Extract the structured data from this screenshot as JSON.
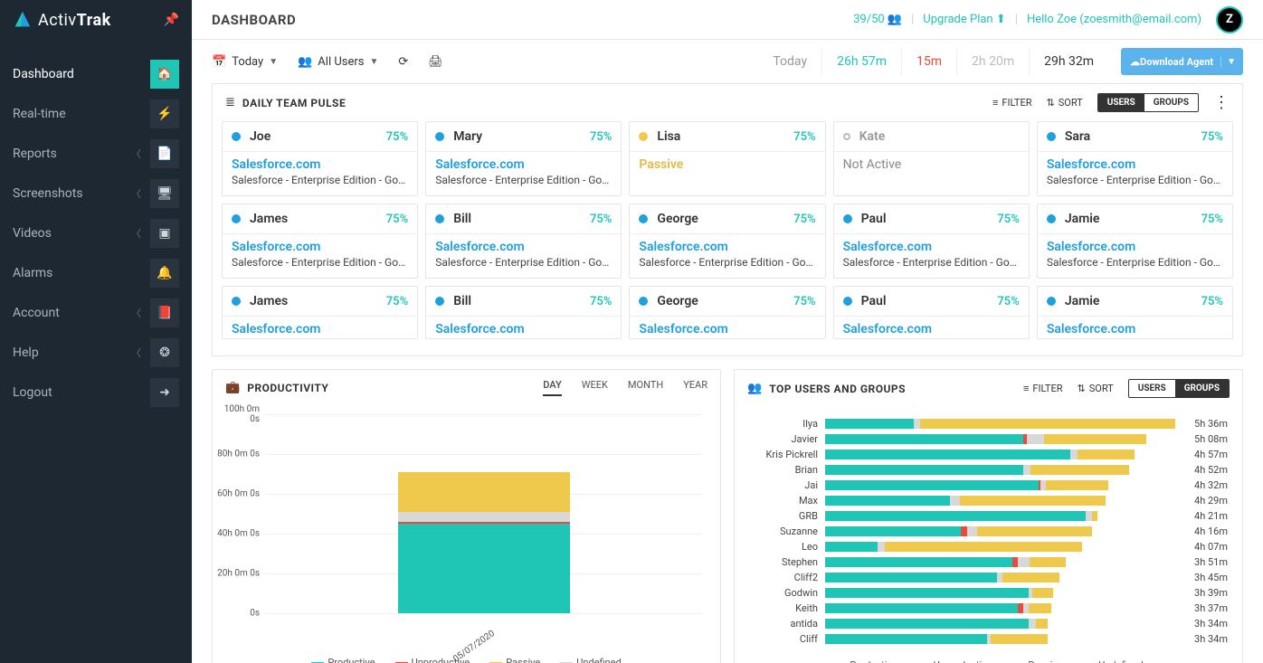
{
  "colors": {
    "teal": "#1fc6b5",
    "blue": "#1fa0de",
    "yellow": "#efc94c",
    "red": "#e74c3c",
    "gray": "#d8d8d8",
    "headerBlue": "#5cb3ec",
    "dotProductive": "#1fa0de",
    "dotPassive": "#efc94c",
    "dotInactive": "#bbbbbb"
  },
  "brand": {
    "text1": "Activ",
    "text2": "Trak"
  },
  "nav": [
    {
      "label": "Dashboard",
      "icon": "🏠",
      "chev": false,
      "active": true
    },
    {
      "label": "Real-time",
      "icon": "⚡",
      "chev": false
    },
    {
      "label": "Reports",
      "icon": "📄",
      "chev": true
    },
    {
      "label": "Screenshots",
      "icon": "🖥",
      "chev": true
    },
    {
      "label": "Videos",
      "icon": "▣",
      "chev": true
    },
    {
      "label": "Alarms",
      "icon": "🔔",
      "chev": false
    },
    {
      "label": "Account",
      "icon": "📕",
      "chev": true
    },
    {
      "label": "Help",
      "icon": "❂",
      "chev": true
    },
    {
      "label": "Logout",
      "icon": "➜",
      "chev": false
    }
  ],
  "page": {
    "title": "DASHBOARD"
  },
  "topbar": {
    "quota": "39/50",
    "upgrade": "Upgrade Plan",
    "greeting": "Hello Zoe",
    "email": "(zoesmith@email.com)",
    "avatar": "Z"
  },
  "toolbar": {
    "date": "Today",
    "users": "All Users",
    "times": {
      "label": "Today",
      "productive": "26h 57m",
      "unproductive": "15m",
      "passive": "2h 20m",
      "total": "29h 32m"
    },
    "download": "Download Agent"
  },
  "pulse": {
    "title": "DAILY TEAM PULSE",
    "filter": "FILTER",
    "sort": "SORT",
    "toggle": {
      "a": "USERS",
      "b": "GROUPS",
      "active": "a"
    },
    "rows": [
      [
        {
          "name": "Joe",
          "pct": "75%",
          "app": "Salesforce.com",
          "sub": "Salesforce - Enterprise Edition - Googl…",
          "status": "productive"
        },
        {
          "name": "Mary",
          "pct": "75%",
          "app": "Salesforce.com",
          "sub": "Salesforce - Enterprise Edition - Googl…",
          "status": "productive"
        },
        {
          "name": "Lisa",
          "pct": "75%",
          "app": "Passive",
          "sub": "",
          "status": "passive"
        },
        {
          "name": "Kate",
          "pct": "",
          "app": "Not Active",
          "sub": "",
          "status": "inactive"
        },
        {
          "name": "Sara",
          "pct": "75%",
          "app": "Salesforce.com",
          "sub": "Salesforce - Enterprise Edition - Googl…",
          "status": "productive"
        }
      ],
      [
        {
          "name": "James",
          "pct": "75%",
          "app": "Salesforce.com",
          "sub": "Salesforce - Enterprise Edition - Google C…",
          "status": "productive"
        },
        {
          "name": "Bill",
          "pct": "75%",
          "app": "Salesforce.com",
          "sub": "Salesforce - Enterprise Edition - Googl…",
          "status": "productive"
        },
        {
          "name": "George",
          "pct": "75%",
          "app": "Salesforce.com",
          "sub": "Salesforce - Enterprise Edition - Googl…",
          "status": "productive"
        },
        {
          "name": "Paul",
          "pct": "75%",
          "app": "Salesforce.com",
          "sub": "Salesforce - Enterprise Edition - Googl…",
          "status": "productive"
        },
        {
          "name": "Jamie",
          "pct": "75%",
          "app": "Salesforce.com",
          "sub": "Salesforce - Enterprise Edition - Googl…",
          "status": "productive"
        }
      ],
      [
        {
          "name": "James",
          "pct": "75%",
          "app": "Salesforce.com",
          "sub": "",
          "status": "productive"
        },
        {
          "name": "Bill",
          "pct": "75%",
          "app": "Salesforce.com",
          "sub": "",
          "status": "productive"
        },
        {
          "name": "George",
          "pct": "75%",
          "app": "Salesforce.com",
          "sub": "",
          "status": "productive"
        },
        {
          "name": "Paul",
          "pct": "75%",
          "app": "Salesforce.com",
          "sub": "",
          "status": "productive"
        },
        {
          "name": "Jamie",
          "pct": "75%",
          "app": "Salesforce.com",
          "sub": "",
          "status": "productive"
        }
      ]
    ]
  },
  "productivity": {
    "title": "PRODUCTIVITY",
    "tabs": [
      "DAY",
      "WEEK",
      "MONTH",
      "YEAR"
    ],
    "activeTab": 0,
    "ymax": 100,
    "yticks": [
      "100h 0m 0s",
      "80h 0m 0s",
      "60h 0m 0s",
      "40h 0m 0s",
      "20h 0m 0s",
      "0s"
    ],
    "xlabel": "05/07/2020",
    "segments": [
      {
        "key": "productive",
        "value": 45,
        "color": "#1fc6b5"
      },
      {
        "key": "unproductive",
        "value": 1,
        "color": "#e74c3c"
      },
      {
        "key": "undefined",
        "value": 5,
        "color": "#d8d8d8"
      },
      {
        "key": "passive",
        "value": 20,
        "color": "#efc94c"
      }
    ],
    "legend": [
      {
        "label": "Productive",
        "color": "#1fc6b5"
      },
      {
        "label": "Unproductive",
        "color": "#e74c3c"
      },
      {
        "label": "Passive",
        "color": "#efc94c"
      },
      {
        "label": "Undefined",
        "color": "#d8d8d8"
      }
    ]
  },
  "topusers": {
    "title": "TOP USERS AND GROUPS",
    "filter": "FILTER",
    "sort": "SORT",
    "toggle": {
      "a": "USERS",
      "b": "GROUPS",
      "active": "b"
    },
    "maxMinutes": 336,
    "rows": [
      {
        "name": "Ilya",
        "time": "5h 36m",
        "p": 85,
        "u": 0,
        "ps": 245,
        "ud": 6
      },
      {
        "name": "Javier",
        "time": "5h 08m",
        "p": 190,
        "u": 4,
        "ps": 98,
        "ud": 16
      },
      {
        "name": "Kris Pickrell",
        "time": "4h 57m",
        "p": 235,
        "u": 0,
        "ps": 55,
        "ud": 7
      },
      {
        "name": "Brian",
        "time": "4h 52m",
        "p": 190,
        "u": 0,
        "ps": 95,
        "ud": 7
      },
      {
        "name": "Jai",
        "time": "4h 32m",
        "p": 205,
        "u": 2,
        "ps": 60,
        "ud": 5
      },
      {
        "name": "Max",
        "time": "4h 29m",
        "p": 120,
        "u": 0,
        "ps": 140,
        "ud": 9
      },
      {
        "name": "GRB",
        "time": "4h 21m",
        "p": 250,
        "u": 0,
        "ps": 5,
        "ud": 6
      },
      {
        "name": "Suzanne",
        "time": "4h 16m",
        "p": 130,
        "u": 6,
        "ps": 110,
        "ud": 10
      },
      {
        "name": "Leo",
        "time": "4h 07m",
        "p": 50,
        "u": 0,
        "ps": 190,
        "ud": 7
      },
      {
        "name": "Stephen",
        "time": "3h 51m",
        "p": 180,
        "u": 5,
        "ps": 35,
        "ud": 11
      },
      {
        "name": "Cliff2",
        "time": "3h 45m",
        "p": 165,
        "u": 0,
        "ps": 55,
        "ud": 5
      },
      {
        "name": "Godwin",
        "time": "3h 39m",
        "p": 195,
        "u": 0,
        "ps": 20,
        "ud": 4
      },
      {
        "name": "Keith",
        "time": "3h 37m",
        "p": 185,
        "u": 5,
        "ps": 22,
        "ud": 5
      },
      {
        "name": "antida",
        "time": "3h 34m",
        "p": 195,
        "u": 0,
        "ps": 12,
        "ud": 7
      },
      {
        "name": "Cliff",
        "time": "3h 34m",
        "p": 155,
        "u": 0,
        "ps": 55,
        "ud": 4
      }
    ],
    "legend": [
      {
        "label": "Productive",
        "color": "#1fc6b5"
      },
      {
        "label": "Unproductive",
        "color": "#e74c3c"
      },
      {
        "label": "Passive",
        "color": "#efc94c"
      },
      {
        "label": "Undefined",
        "color": "#d8d8d8"
      }
    ]
  }
}
